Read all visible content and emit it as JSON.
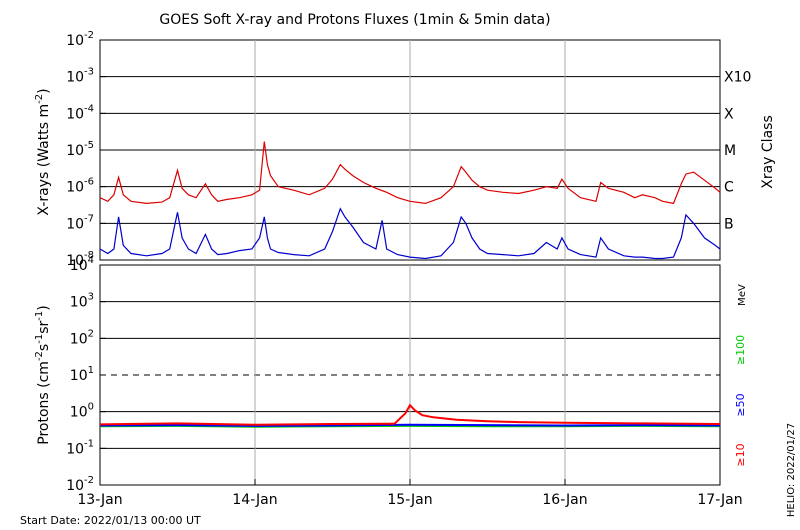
{
  "title": "GOES Soft X-ray and Protons Fluxes   (1min & 5min data)",
  "footer": {
    "start_date": "Start Date: 2022/01/13 00:00 UT",
    "credit": "HELIO: 2022/01/27"
  },
  "colors": {
    "xray_long": "#dd0000",
    "xray_short": "#0000cc",
    "proton_10": "#ff0000",
    "proton_50": "#0000ff",
    "proton_100": "#00cc00",
    "gridline": "#000000",
    "day_divider": "#aaaaaa",
    "axes": "#000000"
  },
  "chart_data": [
    {
      "type": "line",
      "panel": "xray",
      "ylabel": "X-rays (Watts m^-2)",
      "ylabel_base": "X-rays (Watts m",
      "ylabel_exp": "-2",
      "ylabel_close": ")",
      "yscale": "log",
      "ylim": [
        1e-08,
        0.01
      ],
      "ytick_labels": [
        {
          "base": "10",
          "exp": "-8"
        },
        {
          "base": "10",
          "exp": "-7"
        },
        {
          "base": "10",
          "exp": "-6"
        },
        {
          "base": "10",
          "exp": "-5"
        },
        {
          "base": "10",
          "exp": "-4"
        },
        {
          "base": "10",
          "exp": "-3"
        },
        {
          "base": "10",
          "exp": "-2"
        }
      ],
      "xlim": [
        "2022-01-13",
        "2022-01-17"
      ],
      "right_axis_label": "Xray Class",
      "flare_classes": [
        {
          "label": "B",
          "value": 1e-07
        },
        {
          "label": "C",
          "value": 1e-06
        },
        {
          "label": "M",
          "value": 1e-05
        },
        {
          "label": "X",
          "value": 0.0001
        },
        {
          "label": "X10",
          "value": 0.001
        }
      ],
      "series": [
        {
          "color": "#dd0000",
          "x": [
            13.0,
            13.05,
            13.09,
            13.12,
            13.15,
            13.2,
            13.3,
            13.4,
            13.45,
            13.5,
            13.53,
            13.57,
            13.62,
            13.68,
            13.72,
            13.76,
            13.82,
            13.9,
            13.98,
            14.03,
            14.06,
            14.08,
            14.1,
            14.15,
            14.25,
            14.35,
            14.45,
            14.5,
            14.55,
            14.58,
            14.63,
            14.7,
            14.78,
            14.85,
            14.92,
            15.0,
            15.1,
            15.2,
            15.28,
            15.33,
            15.36,
            15.4,
            15.45,
            15.5,
            15.6,
            15.7,
            15.8,
            15.88,
            15.95,
            15.98,
            16.02,
            16.1,
            16.2,
            16.23,
            16.28,
            16.38,
            16.45,
            16.5,
            16.58,
            16.63,
            16.7,
            16.75,
            16.78,
            16.83,
            16.9,
            16.97,
            17.0
          ],
          "y": [
            5e-07,
            4e-07,
            6e-07,
            1.8e-06,
            6e-07,
            4e-07,
            3.5e-07,
            3.8e-07,
            5e-07,
            2.8e-06,
            9e-07,
            6e-07,
            5e-07,
            1.2e-06,
            6e-07,
            4e-07,
            4.5e-07,
            5e-07,
            6e-07,
            8e-07,
            1.7e-05,
            4e-06,
            2e-06,
            1e-06,
            8e-07,
            6e-07,
            9e-07,
            1.6e-06,
            4e-06,
            3e-06,
            2e-06,
            1.3e-06,
            9e-07,
            7e-07,
            5e-07,
            4e-07,
            3.5e-07,
            5e-07,
            1e-06,
            3.5e-06,
            2.5e-06,
            1.5e-06,
            1e-06,
            8e-07,
            7e-07,
            6.5e-07,
            8e-07,
            1e-06,
            9e-07,
            1.6e-06,
            9e-07,
            5e-07,
            4e-07,
            1.3e-06,
            9e-07,
            7e-07,
            5e-07,
            6e-07,
            5e-07,
            4e-07,
            3.5e-07,
            1.2e-06,
            2.2e-06,
            2.5e-06,
            1.5e-06,
            9e-07,
            7e-07
          ]
        },
        {
          "color": "#0000cc",
          "x": [
            13.0,
            13.05,
            13.09,
            13.12,
            13.15,
            13.2,
            13.3,
            13.4,
            13.45,
            13.5,
            13.53,
            13.57,
            13.62,
            13.68,
            13.72,
            13.76,
            13.82,
            13.9,
            13.98,
            14.03,
            14.06,
            14.08,
            14.1,
            14.15,
            14.25,
            14.35,
            14.45,
            14.5,
            14.55,
            14.58,
            14.63,
            14.7,
            14.78,
            14.82,
            14.85,
            14.92,
            15.0,
            15.1,
            15.2,
            15.28,
            15.33,
            15.36,
            15.4,
            15.45,
            15.5,
            15.6,
            15.7,
            15.8,
            15.88,
            15.95,
            15.98,
            16.02,
            16.1,
            16.2,
            16.23,
            16.28,
            16.38,
            16.45,
            16.5,
            16.58,
            16.63,
            16.7,
            16.75,
            16.78,
            16.83,
            16.9,
            16.97,
            17.0
          ],
          "y": [
            2e-08,
            1.5e-08,
            2e-08,
            1.5e-07,
            2.5e-08,
            1.5e-08,
            1.3e-08,
            1.5e-08,
            2e-08,
            2e-07,
            4e-08,
            2e-08,
            1.5e-08,
            5e-08,
            2e-08,
            1.4e-08,
            1.5e-08,
            1.8e-08,
            2e-08,
            4e-08,
            1.5e-07,
            4e-08,
            2e-08,
            1.6e-08,
            1.4e-08,
            1.3e-08,
            2e-08,
            6e-08,
            2.5e-07,
            1.5e-07,
            8e-08,
            3e-08,
            2e-08,
            1.2e-07,
            2e-08,
            1.4e-08,
            1.2e-08,
            1.1e-08,
            1.3e-08,
            3e-08,
            1.5e-07,
            1e-07,
            4e-08,
            2e-08,
            1.5e-08,
            1.4e-08,
            1.3e-08,
            1.5e-08,
            3e-08,
            2e-08,
            4e-08,
            2e-08,
            1.4e-08,
            1.2e-08,
            4e-08,
            2e-08,
            1.3e-08,
            1.2e-08,
            1.2e-08,
            1.1e-08,
            1.1e-08,
            1.2e-08,
            4e-08,
            1.7e-07,
            1e-07,
            4e-08,
            2.5e-08,
            2e-08
          ]
        }
      ]
    },
    {
      "type": "line",
      "panel": "protons",
      "ylabel": "Protons (cm^-2 s^-1 sr^-1)",
      "ylabel_p1": "Protons (cm",
      "ylabel_e1": "-2",
      "ylabel_p2": "s",
      "ylabel_e2": "-1",
      "ylabel_p3": "sr",
      "ylabel_e3": "-1",
      "ylabel_close": ")",
      "yscale": "log",
      "ylim": [
        0.01,
        10000
      ],
      "ytick_labels": [
        {
          "base": "10",
          "exp": "-2"
        },
        {
          "base": "10",
          "exp": "-1"
        },
        {
          "base": "10",
          "exp": "0"
        },
        {
          "base": "10",
          "exp": "1"
        },
        {
          "base": "10",
          "exp": "2"
        },
        {
          "base": "10",
          "exp": "3"
        },
        {
          "base": "10",
          "exp": "4"
        }
      ],
      "threshold": 10,
      "right_label_unit": "MeV",
      "series": [
        {
          "name": "≥10",
          "color": "#ff0000",
          "x": [
            13.0,
            13.5,
            14.0,
            14.5,
            14.9,
            14.97,
            15.0,
            15.03,
            15.08,
            15.15,
            15.3,
            15.5,
            15.7,
            16.0,
            16.5,
            17.0
          ],
          "y": [
            0.45,
            0.48,
            0.44,
            0.46,
            0.47,
            0.9,
            1.5,
            1.1,
            0.8,
            0.7,
            0.6,
            0.55,
            0.52,
            0.5,
            0.48,
            0.46
          ]
        },
        {
          "name": "≥50",
          "color": "#0000ff",
          "x": [
            13.0,
            13.5,
            14.0,
            14.5,
            15.0,
            15.5,
            16.0,
            16.5,
            17.0
          ],
          "y": [
            0.42,
            0.43,
            0.41,
            0.42,
            0.44,
            0.43,
            0.42,
            0.43,
            0.42
          ]
        },
        {
          "name": "≥100",
          "color": "#00cc00",
          "x": [
            13.0,
            13.5,
            14.0,
            14.5,
            15.0,
            15.5,
            16.0,
            16.5,
            17.0
          ],
          "y": [
            0.4,
            0.41,
            0.39,
            0.4,
            0.41,
            0.4,
            0.4,
            0.41,
            0.4
          ]
        }
      ]
    }
  ],
  "x_ticks": [
    {
      "label": "13-Jan",
      "value": 13
    },
    {
      "label": "14-Jan",
      "value": 14
    },
    {
      "label": "15-Jan",
      "value": 15
    },
    {
      "label": "16-Jan",
      "value": 16
    },
    {
      "label": "17-Jan",
      "value": 17
    }
  ]
}
